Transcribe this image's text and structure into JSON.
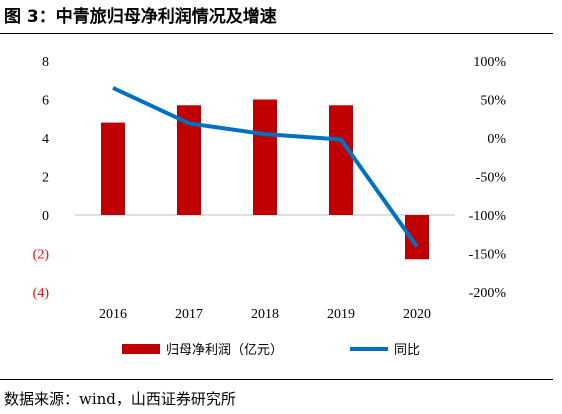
{
  "header": {
    "title": "图 3：中青旅归母净利润情况及增速"
  },
  "footer": {
    "source": "数据来源：wind，山西证券研究所"
  },
  "colors": {
    "bar": "#C00000",
    "line": "#0070C0",
    "negative_tick": "#FF0000",
    "axis": "#BFBFBF"
  },
  "chart_data": {
    "type": "bar",
    "categories": [
      "2016",
      "2017",
      "2018",
      "2019",
      "2020"
    ],
    "series": [
      {
        "name": "归母净利润（亿元）",
        "type": "bar",
        "axis": "left",
        "values": [
          4.8,
          5.7,
          6.0,
          5.7,
          -2.3
        ]
      },
      {
        "name": "同比",
        "type": "line",
        "axis": "right",
        "values": [
          65,
          19,
          5,
          -2,
          -141
        ]
      }
    ],
    "y_left": {
      "ylim": [
        -4,
        8
      ],
      "ticks": [
        8,
        6,
        4,
        2,
        0,
        -2,
        -4
      ],
      "tick_labels": [
        "8",
        "6",
        "4",
        "2",
        "0",
        "(2)",
        "(4)"
      ]
    },
    "y_right": {
      "ylim": [
        -200,
        100
      ],
      "ticks": [
        100,
        50,
        0,
        -50,
        -100,
        -150,
        -200
      ],
      "tick_labels": [
        "100%",
        "50%",
        "0%",
        "-50%",
        "-100%",
        "-150%",
        "-200%"
      ]
    },
    "legend_position": "bottom",
    "grid": false
  }
}
